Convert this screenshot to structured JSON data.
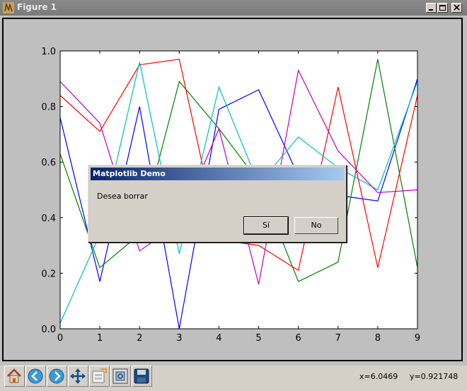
{
  "window": {
    "title": "Figure 1"
  },
  "toolbar": {
    "buttons": [
      "home-icon",
      "back-icon",
      "forward-icon",
      "pan-icon",
      "subplots-icon",
      "zoom-icon",
      "save-icon"
    ],
    "coord_x": "x=6.0469",
    "coord_y": "y=0.921748"
  },
  "dialog": {
    "title": "Matplotlib Demo",
    "message": "Desea borrar",
    "yes_label": "Sí",
    "no_label": "No"
  },
  "chart_data": {
    "type": "line",
    "x": [
      0,
      1,
      2,
      3,
      4,
      5,
      6,
      7,
      8,
      9
    ],
    "xlim": [
      0,
      9
    ],
    "ylim": [
      0.0,
      1.0
    ],
    "xticks": [
      "0",
      "1",
      "2",
      "3",
      "4",
      "5",
      "6",
      "7",
      "8",
      "9"
    ],
    "yticks": [
      "0.0",
      "0.2",
      "0.4",
      "0.6",
      "0.8",
      "1.0"
    ],
    "grid": false,
    "series": [
      {
        "color": "#0000ff",
        "values": [
          0.76,
          0.17,
          0.8,
          0.0,
          0.79,
          0.86,
          0.55,
          0.48,
          0.46,
          0.9
        ]
      },
      {
        "color": "#008000",
        "values": [
          0.63,
          0.22,
          0.34,
          0.89,
          0.72,
          0.53,
          0.17,
          0.24,
          0.97,
          0.22
        ]
      },
      {
        "color": "#ff0000",
        "values": [
          0.84,
          0.71,
          0.95,
          0.97,
          0.32,
          0.3,
          0.21,
          0.87,
          0.22,
          0.84
        ]
      },
      {
        "color": "#00bfbf",
        "values": [
          0.02,
          0.34,
          0.96,
          0.27,
          0.87,
          0.52,
          0.69,
          0.58,
          0.5,
          0.89
        ]
      },
      {
        "color": "#bf00bf",
        "values": [
          0.89,
          0.74,
          0.28,
          0.38,
          0.72,
          0.16,
          0.93,
          0.64,
          0.49,
          0.5
        ]
      }
    ]
  }
}
